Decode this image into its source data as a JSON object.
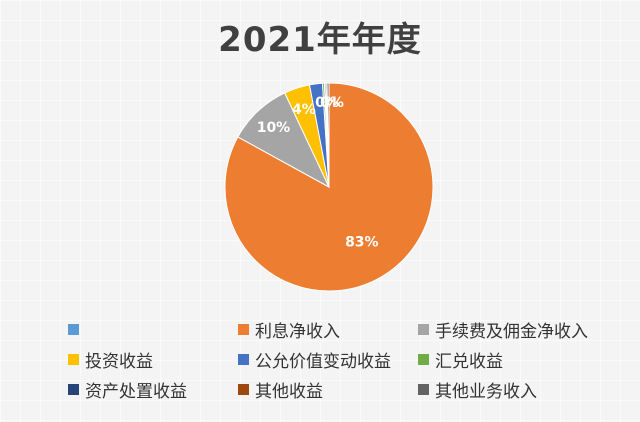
{
  "chart_data": {
    "type": "pie",
    "title": "2021年年度",
    "legend_position": "bottom",
    "slices": [
      {
        "name": "利息净收入",
        "value": 83,
        "label": "83%",
        "color": "#ed7d31"
      },
      {
        "name": "手续费及佣金净收入",
        "value": 10,
        "label": "10%",
        "color": "#a5a5a5"
      },
      {
        "name": "投资收益",
        "value": 4,
        "label": "4%",
        "color": "#ffc000"
      },
      {
        "name": "公允价值变动收益",
        "value": 2,
        "label": "",
        "color": "#4472c4"
      },
      {
        "name": "汇兑收益",
        "value": 0.3,
        "label": "0%",
        "color": "#70ad47"
      },
      {
        "name": "资产处置收益",
        "value": 0.2,
        "label": "",
        "color": "#264478"
      },
      {
        "name": "其他收益",
        "value": 0.2,
        "label": "",
        "color": "#9e480e"
      },
      {
        "name": "其他业务收入",
        "value": 0.3,
        "label": "0%",
        "color": "#636363"
      }
    ],
    "legend": [
      {
        "label": "",
        "color": "#5b9bd5"
      },
      {
        "label": "利息净收入",
        "color": "#ed7d31"
      },
      {
        "label": "手续费及佣金净收入",
        "color": "#a5a5a5"
      },
      {
        "label": "投资收益",
        "color": "#ffc000"
      },
      {
        "label": "公允价值变动收益",
        "color": "#4472c4"
      },
      {
        "label": "汇兑收益",
        "color": "#70ad47"
      },
      {
        "label": "资产处置收益",
        "color": "#264478"
      },
      {
        "label": "其他收益",
        "color": "#9e480e"
      },
      {
        "label": "其他业务收入",
        "color": "#636363"
      }
    ]
  }
}
